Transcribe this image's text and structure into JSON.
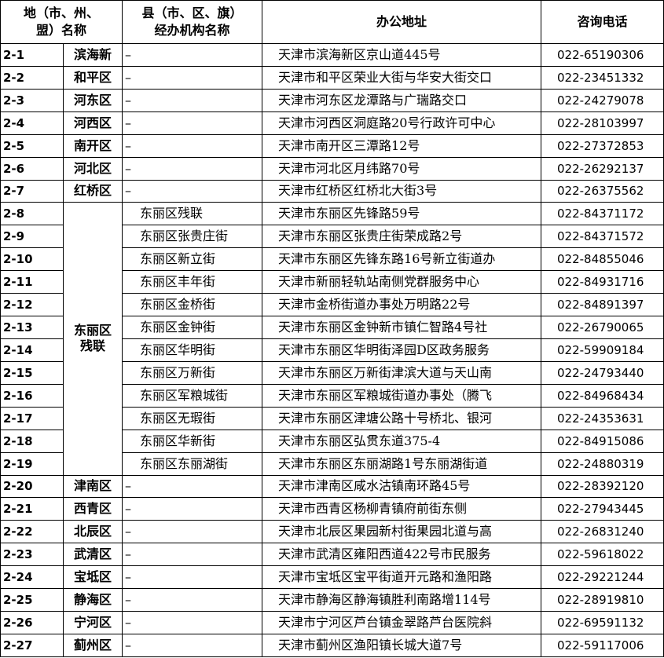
{
  "header": {
    "region": "地（市、州、\n盟）名称",
    "county": "县（市、区、旗）\n经办机构名称",
    "address": "办公地址",
    "phone": "咨询电话"
  },
  "rows": [
    {
      "id": "2-1",
      "region": "滨海新",
      "county": "–",
      "address": "天津市滨海新区京山道445号",
      "phone": "022-65190306"
    },
    {
      "id": "2-2",
      "region": "和平区",
      "county": "–",
      "address": "天津市和平区荣业大街与华安大街交口",
      "phone": "022-23451332"
    },
    {
      "id": "2-3",
      "region": "河东区",
      "county": "–",
      "address": "天津市河东区龙潭路与广瑞路交口",
      "phone": "022-24279078"
    },
    {
      "id": "2-4",
      "region": "河西区",
      "county": "–",
      "address": "天津市河西区洞庭路20号行政许可中心",
      "phone": "022-28103997"
    },
    {
      "id": "2-5",
      "region": "南开区",
      "county": "–",
      "address": "天津市南开区三潭路12号",
      "phone": "022-27372853"
    },
    {
      "id": "2-6",
      "region": "河北区",
      "county": "–",
      "address": "天津市河北区月纬路70号",
      "phone": "022-26292137"
    },
    {
      "id": "2-7",
      "region": "红桥区",
      "county": "–",
      "address": "天津市红桥区红桥北大街3号",
      "phone": "022-26375562"
    },
    {
      "id": "2-8",
      "region": "东丽区\n残联",
      "county": "东丽区残联",
      "address": "天津市东丽区先锋路59号",
      "phone": "022-84371172"
    },
    {
      "id": "2-9",
      "county": "东丽区张贵庄街",
      "address": "天津市东丽区张贵庄街荣成路2号",
      "phone": "022-84371572"
    },
    {
      "id": "2-10",
      "county": "东丽区新立街",
      "address": "天津市东丽区先锋东路16号新立街道办",
      "phone": "022-84855046"
    },
    {
      "id": "2-11",
      "county": "东丽区丰年街",
      "address": "天津市新丽轻轨站南侧党群服务中心",
      "phone": "022-84931716"
    },
    {
      "id": "2-12",
      "county": "东丽区金桥街",
      "address": "天津市金桥街道办事处万明路22号",
      "phone": "022-84891397"
    },
    {
      "id": "2-13",
      "county": "东丽区金钟街",
      "address": "天津市东丽区金钟新市镇仁智路4号社",
      "phone": "022-26790065"
    },
    {
      "id": "2-14",
      "county": "东丽区华明街",
      "address": "天津市东丽区华明街泽园D区政务服务",
      "phone": "022-59909184"
    },
    {
      "id": "2-15",
      "county": "东丽区万新街",
      "address": "天津市东丽区万新街津滨大道与天山南",
      "phone": "022-24793440"
    },
    {
      "id": "2-16",
      "county": "东丽区军粮城街",
      "address": "天津市东丽区军粮城街道办事处（腾飞",
      "phone": "022-84968434"
    },
    {
      "id": "2-17",
      "county": "东丽区无瑕街",
      "address": "天津市东丽区津塘公路十号桥北、银河",
      "phone": "022-24353631"
    },
    {
      "id": "2-18",
      "county": "东丽区华新街",
      "address": "天津市东丽区弘贯东道375-4",
      "phone": "022-84915086"
    },
    {
      "id": "2-19",
      "county": "东丽区东丽湖街",
      "address": "天津市东丽区东丽湖路1号东丽湖街道",
      "phone": "022-24880319"
    },
    {
      "id": "2-20",
      "region": "津南区",
      "county": "–",
      "address": "天津市津南区咸水沽镇南环路45号",
      "phone": "022-28392120"
    },
    {
      "id": "2-21",
      "region": "西青区",
      "county": "–",
      "address": "天津市西青区杨柳青镇府前街东侧",
      "phone": "022-27943445"
    },
    {
      "id": "2-22",
      "region": "北辰区",
      "county": "–",
      "address": "天津市北辰区果园新村街果园北道与高",
      "phone": "022-26831240"
    },
    {
      "id": "2-23",
      "region": "武清区",
      "county": "–",
      "address": "天津市武清区雍阳西道422号市民服务",
      "phone": "022-59618022"
    },
    {
      "id": "2-24",
      "region": "宝坻区",
      "county": "–",
      "address": "天津市宝坻区宝平街道开元路和渔阳路",
      "phone": "022-29221244"
    },
    {
      "id": "2-25",
      "region": "静海区",
      "county": "–",
      "address": "天津市静海区静海镇胜利南路增114号",
      "phone": "022-28919810"
    },
    {
      "id": "2-26",
      "region": "宁河区",
      "county": "–",
      "address": "天津市宁河区芦台镇金翠路芦台医院斜",
      "phone": "022-69591132"
    },
    {
      "id": "2-27",
      "region": "蓟州区",
      "county": "–",
      "address": "天津市蓟州区渔阳镇长城大道7号",
      "phone": "022-59117006"
    }
  ]
}
